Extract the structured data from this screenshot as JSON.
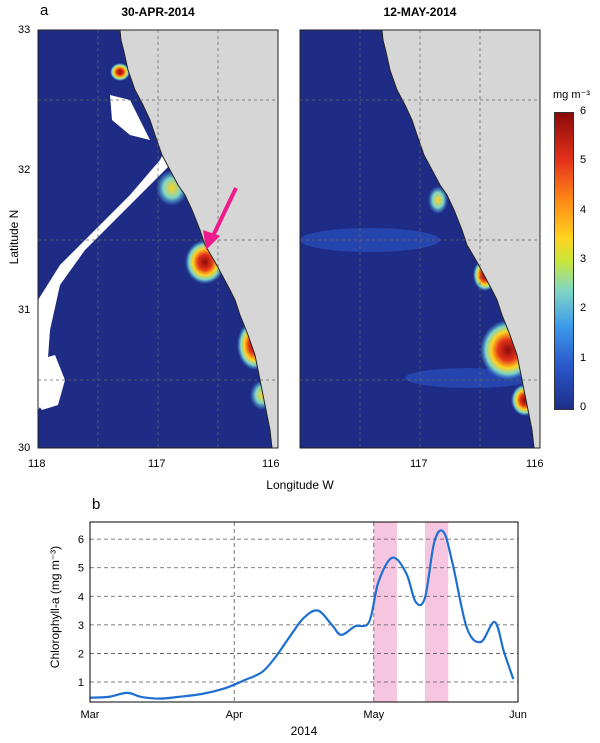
{
  "panel_a_label": "a",
  "panel_b_label": "b",
  "maps": [
    {
      "title": "30-APR-2014"
    },
    {
      "title": "12-MAY-2014"
    }
  ],
  "map_axes": {
    "ylabel": "Latitude N",
    "xlabel": "Longitude W",
    "lat_ticks": [
      "33",
      "32",
      "31",
      "30"
    ],
    "lon_ticks_left": [
      "118",
      "117",
      "116"
    ],
    "lon_ticks_right": [
      "117",
      "116"
    ]
  },
  "colorbar": {
    "unit": "mg m⁻³",
    "ticks": [
      "6",
      "5",
      "4",
      "3",
      "2",
      "1",
      "0"
    ],
    "colors": [
      "#1c2f8a",
      "#2a55c9",
      "#3c9bea",
      "#7fd6c5",
      "#c9e63a",
      "#ffd21e",
      "#ff8c17",
      "#e4321a",
      "#8b0a0a"
    ]
  },
  "chart_data": {
    "type": "line",
    "xlabel": "2014",
    "ylabel": "Chlorophyll-a (mg m⁻³)",
    "x_tick_labels": [
      "Mar",
      "Apr",
      "May",
      "Jun"
    ],
    "x_domain": [
      "2014-03-01",
      "2014-06-01"
    ],
    "ylim": [
      0.3,
      6.6
    ],
    "y_ticks": [
      1,
      2,
      3,
      4,
      5,
      6
    ],
    "grid": true,
    "line_color": "#1f6fd1",
    "highlight_color": "#f4b6d8",
    "highlight_bands": [
      [
        "2014-05-01",
        "2014-05-06"
      ],
      [
        "2014-05-12",
        "2014-05-17"
      ]
    ],
    "series": [
      {
        "x": [
          "2014-03-01",
          "2014-03-05",
          "2014-03-09",
          "2014-03-12",
          "2014-03-16",
          "2014-03-20",
          "2014-03-25",
          "2014-03-30",
          "2014-04-03",
          "2014-04-07",
          "2014-04-10",
          "2014-04-13",
          "2014-04-16",
          "2014-04-19",
          "2014-04-22",
          "2014-04-24",
          "2014-04-27",
          "2014-04-30",
          "2014-05-02",
          "2014-05-05",
          "2014-05-08",
          "2014-05-10",
          "2014-05-12",
          "2014-05-14",
          "2014-05-16",
          "2014-05-18",
          "2014-05-21",
          "2014-05-24",
          "2014-05-27",
          "2014-05-29",
          "2014-05-31"
        ],
        "y": [
          0.45,
          0.48,
          0.62,
          0.48,
          0.42,
          0.48,
          0.58,
          0.78,
          1.05,
          1.35,
          1.9,
          2.6,
          3.25,
          3.5,
          3.0,
          2.65,
          2.95,
          3.1,
          4.5,
          5.35,
          4.8,
          3.8,
          3.95,
          5.9,
          6.25,
          5.1,
          2.9,
          2.4,
          3.1,
          2.05,
          1.1
        ]
      }
    ]
  }
}
